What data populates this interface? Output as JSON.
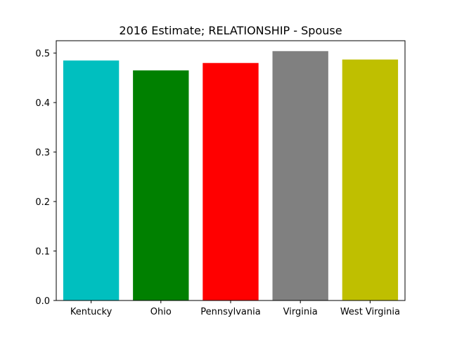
{
  "chart_data": {
    "type": "bar",
    "title": "2016 Estimate; RELATIONSHIP - Spouse",
    "xlabel": "",
    "ylabel": "",
    "categories": [
      "Kentucky",
      "Ohio",
      "Pennsylvania",
      "Virginia",
      "West Virginia"
    ],
    "values": [
      0.485,
      0.465,
      0.48,
      0.504,
      0.487
    ],
    "colors": [
      "#00bfbf",
      "#008000",
      "#ff0000",
      "#808080",
      "#bfbf00"
    ],
    "ylim": [
      0,
      0.525
    ],
    "yticks": [
      0.0,
      0.1,
      0.2,
      0.3,
      0.4,
      0.5
    ],
    "ytick_labels": [
      "0.0",
      "0.1",
      "0.2",
      "0.3",
      "0.4",
      "0.5"
    ],
    "grid": false,
    "legend": "none"
  }
}
